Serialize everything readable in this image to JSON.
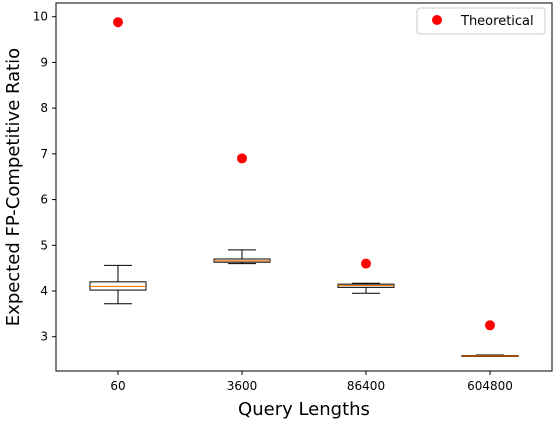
{
  "chart_data": {
    "type": "box",
    "title": "",
    "xlabel": "Query Lengths",
    "ylabel": "Expected FP-Competitive Ratio",
    "categories": [
      "60",
      "3600",
      "86400",
      "604800"
    ],
    "yticks": [
      3,
      4,
      5,
      6,
      7,
      8,
      9,
      10
    ],
    "ylim": [
      2.25,
      10.3
    ],
    "grid": false,
    "legend_position": "top-right",
    "boxes": [
      {
        "whisker_low": 3.72,
        "q1": 4.02,
        "median": 4.1,
        "q3": 4.2,
        "whisker_high": 4.56
      },
      {
        "whisker_low": 4.6,
        "q1": 4.63,
        "median": 4.66,
        "q3": 4.7,
        "whisker_high": 4.9
      },
      {
        "whisker_low": 3.95,
        "q1": 4.08,
        "median": 4.12,
        "q3": 4.15,
        "whisker_high": 4.17
      },
      {
        "whisker_low": 2.57,
        "q1": 2.57,
        "median": 2.58,
        "q3": 2.59,
        "whisker_high": 2.6
      }
    ],
    "series": [
      {
        "name": "Theoretical",
        "values": [
          9.88,
          6.9,
          4.6,
          3.25
        ],
        "color": "#ff0000"
      }
    ],
    "colors": {
      "box": "#000000",
      "median": "#ff7f0e",
      "marker": "#ff0000"
    }
  }
}
